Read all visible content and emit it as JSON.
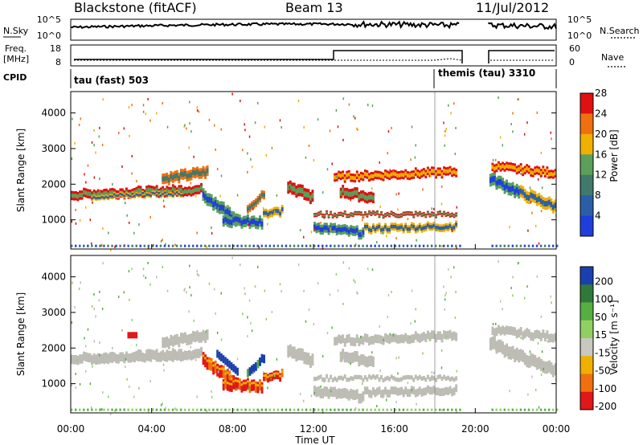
{
  "chart_data": {
    "type": "heatmap",
    "header": {
      "radar": "Blackstone (fitACF)",
      "beam": "Beam 13",
      "date": "11/Jul/2012"
    },
    "noise_panel": {
      "left_label": "N.Sky",
      "right_label": "N.Search",
      "ticks_left": [
        "10^5",
        "10^0"
      ],
      "ticks_right": [
        "10^5",
        "10^0"
      ]
    },
    "freq_panel": {
      "left_label_top": "Freq.",
      "left_label_bottom": "[MHz]",
      "right_label": "Nave",
      "ticks_left": [
        "18",
        "8"
      ],
      "ticks_right": [
        "60",
        "0"
      ]
    },
    "cpid_panel": {
      "label": "CPID",
      "modes": [
        {
          "name": "tau (fast) 503",
          "start_hour": 0
        },
        {
          "name": "themis (tau) 3310",
          "start_hour": 18
        }
      ]
    },
    "x_axis": {
      "label": "Time UT",
      "ticks": [
        "00:00",
        "04:00",
        "08:00",
        "12:00",
        "16:00",
        "20:00",
        "00:00"
      ],
      "range_hours": [
        0,
        24
      ],
      "data_gap_hours": [
        19.2,
        20.6
      ]
    },
    "y_axis": {
      "label": "Slant Range [km]",
      "ticks": [
        "1000",
        "2000",
        "3000",
        "4000"
      ],
      "range_km": [
        180,
        4600
      ]
    },
    "power_panel": {
      "colorbar_label": "Power [dB]",
      "colorbar_ticks": [
        "4",
        "8",
        "12",
        "16",
        "20",
        "24",
        "28"
      ],
      "colors": [
        "#1f3fdc",
        "#2a5fa8",
        "#3f7a6c",
        "#5aa05a",
        "#f0b000",
        "#f07010",
        "#e01010"
      ]
    },
    "velocity_panel": {
      "colorbar_label": "Velocity [m s⁻¹]",
      "colorbar_ticks": [
        "200",
        "100",
        "50",
        "15",
        "-15",
        "-50",
        "-100",
        "-200"
      ],
      "colors": [
        "#1a3fb0",
        "#2f7a3a",
        "#55b040",
        "#90d060",
        "#c8c8c0",
        "#f0b000",
        "#f07010",
        "#e01818"
      ],
      "ground_scatter_color": "#bdbdb5"
    }
  }
}
